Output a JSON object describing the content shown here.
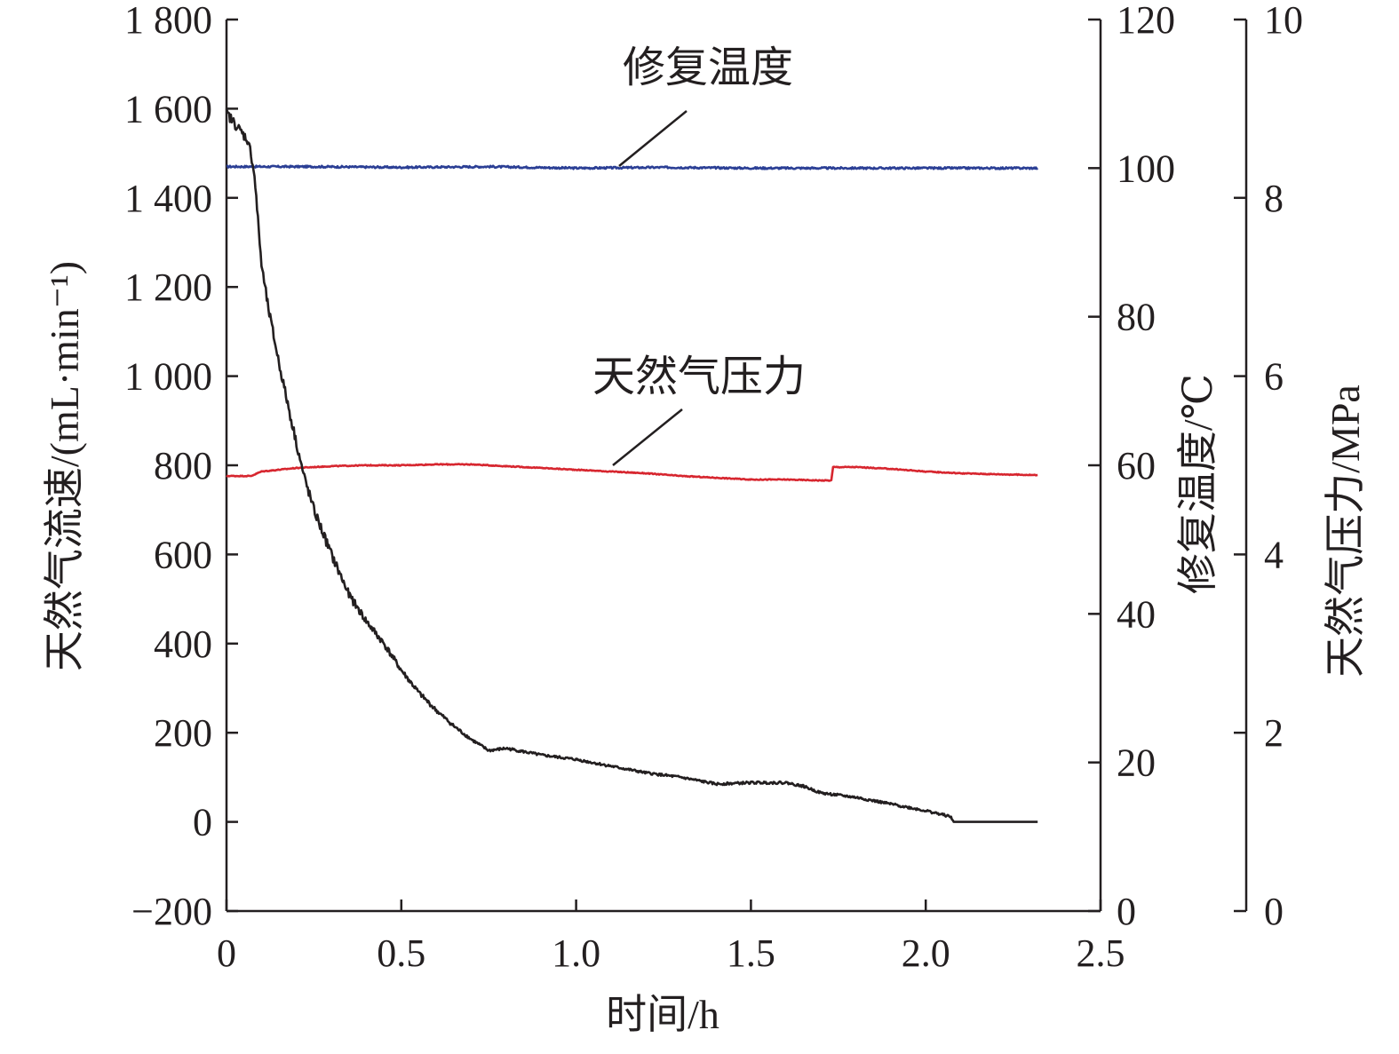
{
  "chart_data": {
    "type": "line",
    "xlabel": "时间/h",
    "xlim": [
      0,
      2.5
    ],
    "x_ticks": [
      0,
      0.5,
      1.0,
      1.5,
      2.0,
      2.5
    ],
    "x_tick_labels": [
      "0",
      "0.5",
      "1.0",
      "1.5",
      "2.0",
      "2.5"
    ],
    "axes": {
      "left": {
        "label": "天然气流速/(mL·min⁻¹)",
        "ylim": [
          -200,
          1800
        ],
        "ticks": [
          -200,
          0,
          200,
          400,
          600,
          800,
          1000,
          1200,
          1400,
          1600,
          1800
        ],
        "tick_labels": [
          "−200",
          "0",
          "200",
          "400",
          "600",
          "800",
          "1 000",
          "1 200",
          "1 400",
          "1 600",
          "1 800"
        ]
      },
      "right1": {
        "label": "修复温度/℃",
        "ylim": [
          0,
          120
        ],
        "ticks": [
          0,
          20,
          40,
          60,
          80,
          100,
          120
        ],
        "tick_labels": [
          "0",
          "20",
          "40",
          "60",
          "80",
          "100",
          "120"
        ]
      },
      "right2": {
        "label": "天然气压力/MPa",
        "ylim": [
          0,
          10
        ],
        "ticks": [
          0,
          2,
          4,
          6,
          8,
          10
        ],
        "tick_labels": [
          "0",
          "2",
          "4",
          "6",
          "8",
          "10"
        ]
      }
    },
    "series": [
      {
        "name": "修复温度",
        "axis": "right1",
        "color": "#2b3f95",
        "x": [
          0,
          0.25,
          0.5,
          0.75,
          1.0,
          1.25,
          1.5,
          1.75,
          2.0,
          2.25,
          2.32
        ],
        "y": [
          100.2,
          100.2,
          100.1,
          100.2,
          100.0,
          100.1,
          100.0,
          100.0,
          100.0,
          100.0,
          100.0
        ]
      },
      {
        "name": "天然气压力",
        "axis": "right2",
        "color": "#d7262f",
        "x": [
          0,
          0.07,
          0.1,
          0.2,
          0.3,
          0.4,
          0.5,
          0.6,
          0.7,
          0.8,
          0.9,
          1.0,
          1.1,
          1.2,
          1.3,
          1.4,
          1.5,
          1.6,
          1.7,
          1.73,
          1.735,
          1.8,
          1.9,
          2.0,
          2.1,
          2.2,
          2.32
        ],
        "y": [
          4.88,
          4.88,
          4.93,
          4.97,
          4.99,
          5.0,
          5.0,
          5.01,
          5.01,
          4.99,
          4.97,
          4.95,
          4.93,
          4.91,
          4.88,
          4.86,
          4.84,
          4.84,
          4.83,
          4.83,
          4.98,
          4.98,
          4.96,
          4.93,
          4.91,
          4.9,
          4.89
        ]
      },
      {
        "name": "天然气流速",
        "axis": "left",
        "color": "#231f20",
        "x": [
          0,
          0.02,
          0.04,
          0.06,
          0.07,
          0.08,
          0.1,
          0.12,
          0.15,
          0.18,
          0.2,
          0.22,
          0.25,
          0.28,
          0.3,
          0.35,
          0.4,
          0.45,
          0.5,
          0.55,
          0.6,
          0.65,
          0.7,
          0.75,
          0.8,
          0.9,
          1.0,
          1.1,
          1.2,
          1.3,
          1.4,
          1.5,
          1.6,
          1.65,
          1.7,
          1.8,
          1.9,
          2.0,
          2.07,
          2.08,
          2.32
        ],
        "y": [
          1590,
          1570,
          1550,
          1530,
          1500,
          1450,
          1250,
          1150,
          1030,
          920,
          850,
          780,
          700,
          640,
          600,
          510,
          450,
          400,
          340,
          290,
          250,
          215,
          185,
          160,
          165,
          150,
          140,
          125,
          110,
          100,
          85,
          88,
          88,
          80,
          65,
          55,
          40,
          25,
          12,
          0,
          0
        ]
      }
    ],
    "annotations": [
      {
        "text": "修复温度",
        "series": "修复温度"
      },
      {
        "text": "天然气压力",
        "series": "天然气压力"
      }
    ]
  }
}
